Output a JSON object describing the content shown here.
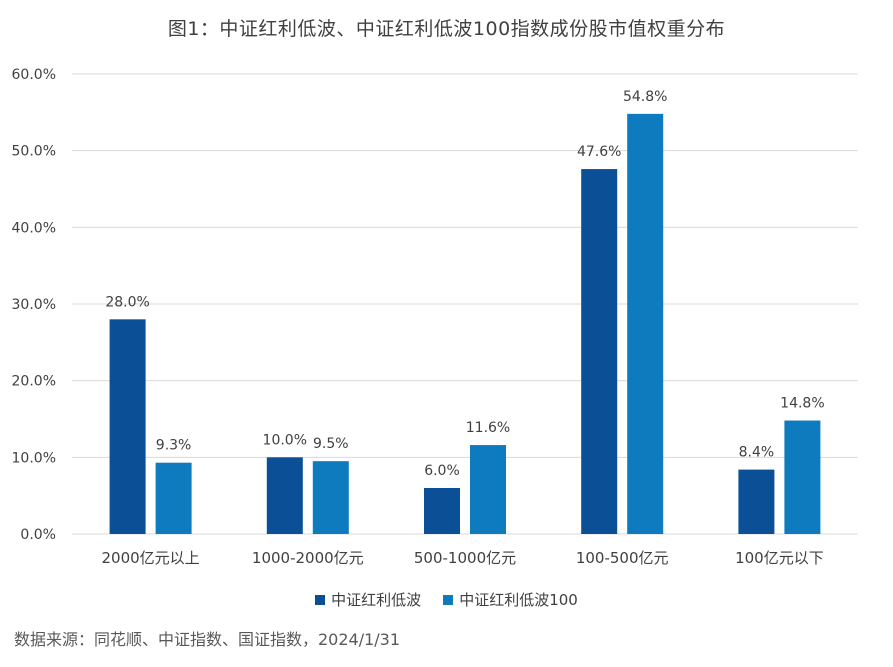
{
  "chart_data": {
    "type": "bar",
    "title": "图1：中证红利低波、中证红利低波100指数成份股市值权重分布",
    "categories": [
      "2000亿元以上",
      "1000-2000亿元",
      "500-1000亿元",
      "100-500亿元",
      "100亿元以下"
    ],
    "series": [
      {
        "name": "中证红利低波",
        "values": [
          28.0,
          10.0,
          6.0,
          47.6,
          8.4
        ],
        "labels": [
          "28.0%",
          "10.0%",
          "6.0%",
          "47.6%",
          "8.4%"
        ],
        "color": "#0b4f96"
      },
      {
        "name": "中证红利低波100",
        "values": [
          9.3,
          9.5,
          11.6,
          54.8,
          14.8
        ],
        "labels": [
          "9.3%",
          "9.5%",
          "11.6%",
          "54.8%",
          "14.8%"
        ],
        "color": "#0d7bbd"
      }
    ],
    "yticks": [
      "0.0%",
      "10.0%",
      "20.0%",
      "30.0%",
      "40.0%",
      "50.0%",
      "60.0%"
    ],
    "ylim": [
      0,
      60
    ],
    "grid": true,
    "legend_position": "bottom"
  },
  "source_text": "数据来源：同花顺、中证指数、国证指数，2024/1/31",
  "colors": {
    "gridline": "#d9d9d9",
    "axis_text": "#404040"
  }
}
